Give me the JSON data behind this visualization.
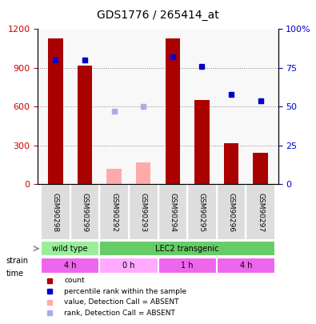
{
  "title": "GDS1776 / 265414_at",
  "samples": [
    "GSM90298",
    "GSM90299",
    "GSM90292",
    "GSM90293",
    "GSM90294",
    "GSM90295",
    "GSM90296",
    "GSM90297"
  ],
  "bar_values": [
    1130,
    920,
    null,
    null,
    1130,
    650,
    320,
    240
  ],
  "bar_absent_values": [
    null,
    null,
    120,
    170,
    null,
    null,
    null,
    null
  ],
  "bar_colors_present": "#aa0000",
  "bar_colors_absent": "#ffaaaa",
  "rank_values": [
    80,
    80,
    null,
    null,
    82,
    76,
    58,
    54
  ],
  "rank_absent_values": [
    null,
    null,
    47,
    50,
    null,
    null,
    null,
    null
  ],
  "rank_color_present": "#0000cc",
  "rank_color_absent": "#aaaaee",
  "ylim_left": [
    0,
    1200
  ],
  "ylim_right": [
    0,
    100
  ],
  "yticks_left": [
    0,
    300,
    600,
    900,
    1200
  ],
  "ytick_labels_left": [
    "0",
    "300",
    "600",
    "900",
    "1200"
  ],
  "yticks_right": [
    0,
    25,
    50,
    75,
    100
  ],
  "ytick_labels_right": [
    "0",
    "25",
    "50",
    "75",
    "100%"
  ],
  "strain_labels": [
    {
      "label": "wild type",
      "start": 0,
      "end": 2,
      "color": "#99ee99"
    },
    {
      "label": "LEC2 transgenic",
      "start": 2,
      "end": 8,
      "color": "#66cc66"
    }
  ],
  "time_labels": [
    {
      "label": "4 h",
      "start": 0,
      "end": 2,
      "color": "#ee66ee"
    },
    {
      "label": "0 h",
      "start": 2,
      "end": 4,
      "color": "#ffaaff"
    },
    {
      "label": "1 h",
      "start": 4,
      "end": 6,
      "color": "#ee66ee"
    },
    {
      "label": "4 h",
      "start": 6,
      "end": 8,
      "color": "#ee66ee"
    }
  ],
  "legend_items": [
    {
      "label": "count",
      "color": "#aa0000",
      "marker": "s"
    },
    {
      "label": "percentile rank within the sample",
      "color": "#0000cc",
      "marker": "s"
    },
    {
      "label": "value, Detection Call = ABSENT",
      "color": "#ffaaaa",
      "marker": "s"
    },
    {
      "label": "rank, Detection Call = ABSENT",
      "color": "#aaaaee",
      "marker": "s"
    }
  ],
  "strain_row_label": "strain",
  "time_row_label": "time",
  "bar_width": 0.5,
  "background_color": "#ffffff",
  "plot_bg_color": "#ffffff",
  "grid_color": "#888888"
}
